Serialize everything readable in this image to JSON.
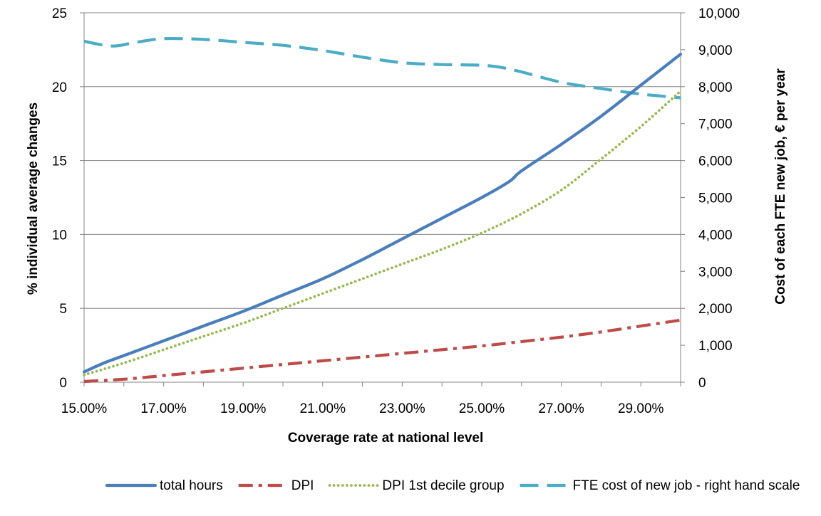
{
  "chart_data": {
    "type": "line",
    "title": "",
    "xlabel": "Coverage rate at national level",
    "ylabel_left": "% individual average changes",
    "ylabel_right": "Cost of each FTE new job, € per year",
    "x_tick_labels": [
      "15.00%",
      "17.00%",
      "19.00%",
      "21.00%",
      "23.00%",
      "25.00%",
      "27.00%",
      "29.00%"
    ],
    "x_ticks": [
      15,
      17,
      19,
      21,
      23,
      25,
      27,
      29
    ],
    "xlim": [
      15,
      30
    ],
    "ylim_left": [
      0,
      25
    ],
    "y_ticks_left": [
      0,
      5,
      10,
      15,
      20,
      25
    ],
    "ylim_right": [
      0,
      10000
    ],
    "y_ticks_right": [
      0,
      1000,
      2000,
      3000,
      4000,
      5000,
      6000,
      7000,
      8000,
      9000,
      10000
    ],
    "y_tick_labels_right": [
      "0",
      "1,000",
      "2,000",
      "3,000",
      "4,000",
      "5,000",
      "6,000",
      "7,000",
      "8,000",
      "9,000",
      "10,000"
    ],
    "grid": "horizontal",
    "legend_position": "bottom",
    "series": [
      {
        "name": "total hours",
        "axis": "left",
        "color": "#4a7ebb",
        "style": "solid",
        "x": [
          15,
          15.5,
          16,
          17,
          18,
          19,
          20,
          21,
          22,
          23,
          24,
          25,
          25.7,
          26,
          27,
          28,
          29,
          30
        ],
        "y": [
          0.7,
          1.3,
          1.8,
          2.8,
          3.8,
          4.8,
          5.9,
          7.0,
          8.3,
          9.7,
          11.1,
          12.5,
          13.6,
          14.3,
          16.1,
          18.0,
          20.1,
          22.2
        ]
      },
      {
        "name": "DPI",
        "axis": "left",
        "color": "#be4b48",
        "style": "dashdot",
        "x": [
          15,
          16,
          17,
          18,
          19,
          20,
          21,
          22,
          23,
          24,
          25,
          26,
          27,
          28,
          29,
          30
        ],
        "y": [
          0.05,
          0.2,
          0.45,
          0.7,
          0.95,
          1.2,
          1.45,
          1.7,
          1.95,
          2.2,
          2.45,
          2.75,
          3.05,
          3.4,
          3.8,
          4.2
        ]
      },
      {
        "name": "DPI 1st decile group",
        "axis": "left",
        "color": "#98b954",
        "style": "dotted",
        "x": [
          15,
          16,
          17,
          18,
          19,
          20,
          21,
          22,
          23,
          24,
          25,
          26,
          27,
          28,
          29,
          30
        ],
        "y": [
          0.5,
          1.3,
          2.2,
          3.1,
          4.0,
          5.0,
          6.0,
          7.0,
          8.0,
          9.0,
          10.1,
          11.4,
          13.0,
          15.1,
          17.3,
          19.7
        ]
      },
      {
        "name": "FTE cost of new job - right hand scale",
        "axis": "right",
        "color": "#4bacc6",
        "style": "dashed",
        "x": [
          15,
          15.7,
          16.3,
          17,
          18,
          19,
          20,
          21,
          22,
          23,
          24,
          25,
          25.5,
          26,
          27,
          28,
          29,
          30
        ],
        "y": [
          9230,
          9100,
          9200,
          9300,
          9280,
          9200,
          9120,
          8980,
          8800,
          8650,
          8600,
          8580,
          8520,
          8400,
          8120,
          7950,
          7800,
          7700
        ]
      }
    ]
  }
}
